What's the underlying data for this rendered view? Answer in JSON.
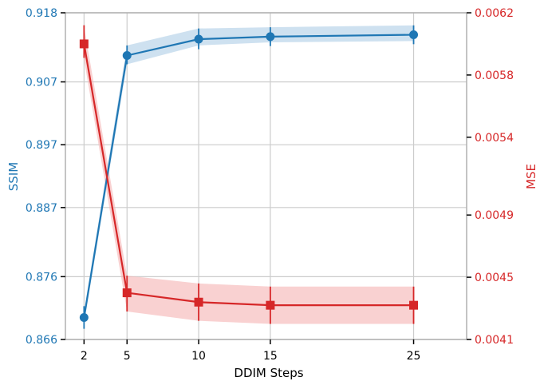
{
  "chart_data": {
    "type": "line",
    "title": "",
    "xlabel": "DDIM Steps",
    "ylabel_left": "SSIM",
    "ylabel_right": "MSE",
    "x": [
      2,
      5,
      10,
      15,
      25
    ],
    "x_tick_labels": [
      "2",
      "5",
      "10",
      "15",
      "25"
    ],
    "xlim": [
      0.7,
      28.7
    ],
    "ylim_left": [
      0.866,
      0.918
    ],
    "ylim_right": [
      0.0041,
      0.0062
    ],
    "y_tick_values_left": [
      0.866,
      0.876,
      0.887,
      0.897,
      0.907,
      0.918
    ],
    "y_tick_labels_left": [
      "0.866",
      "0.876",
      "0.887",
      "0.897",
      "0.907",
      "0.918"
    ],
    "y_tick_values_right": [
      0.0041,
      0.0045,
      0.0049,
      0.0054,
      0.0058,
      0.0062
    ],
    "y_tick_labels_right": [
      "0.0041",
      "0.0045",
      "0.0049",
      "0.0054",
      "0.0058",
      "0.0062"
    ],
    "grid": true,
    "series": [
      {
        "name": "",
        "axis": "left",
        "marker": "circle",
        "color": "#1f77b4",
        "band_color": "#aecde6",
        "values": [
          0.8695,
          0.9112,
          0.9138,
          0.9142,
          0.9145
        ],
        "band_lower": [
          0.8685,
          0.9098,
          0.9128,
          0.9133,
          0.9135
        ],
        "band_upper": [
          0.8705,
          0.9128,
          0.9155,
          0.9157,
          0.916
        ],
        "error_lower": [
          0.8677,
          0.9098,
          0.9122,
          0.9127,
          0.913
        ],
        "error_upper": [
          0.8713,
          0.9128,
          0.9155,
          0.9157,
          0.916
        ]
      },
      {
        "name": "",
        "axis": "right",
        "marker": "square",
        "color": "#d62728",
        "band_color": "#f5b3b3",
        "values": [
          0.006,
          0.0044,
          0.00434,
          0.00432,
          0.00432
        ],
        "band_lower": [
          0.0059,
          0.00428,
          0.00422,
          0.0042,
          0.0042
        ],
        "band_upper": [
          0.00611,
          0.00451,
          0.00446,
          0.00444,
          0.00444
        ],
        "error_lower": [
          0.00591,
          0.00428,
          0.00422,
          0.0042,
          0.0042
        ],
        "error_upper": [
          0.00612,
          0.00451,
          0.00446,
          0.00444,
          0.00444
        ]
      }
    ]
  },
  "colors": {
    "axis": "#b0b0b0",
    "grid": "#cccccc",
    "left": "#1f77b4",
    "right": "#d62728",
    "text": "#000000"
  }
}
